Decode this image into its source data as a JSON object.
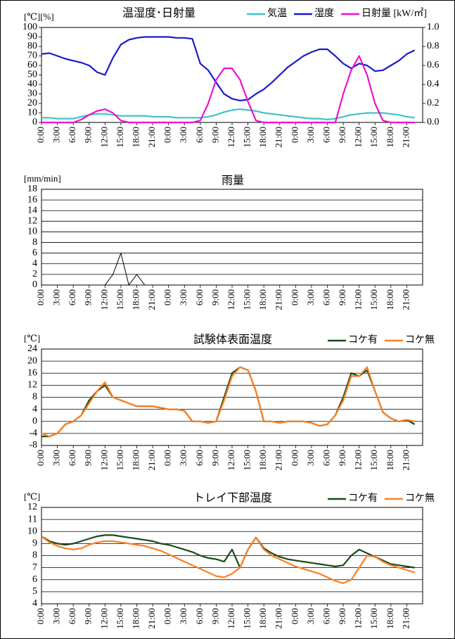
{
  "chart_data": [
    {
      "type": "line",
      "title": "温湿度･日射量",
      "y_label": "[℃][%]",
      "grid": false,
      "legend": "top-right",
      "categories": [
        "0:00",
        null,
        "3:00",
        null,
        "6:00",
        null,
        "9:00",
        null,
        "12:00",
        null,
        "15:00",
        null,
        "18:00",
        null,
        "21:00",
        null,
        "0:00",
        null,
        "3:00",
        null,
        "6:00",
        null,
        "9:00",
        null,
        "12:00",
        null,
        "15:00",
        null,
        "18:00",
        null,
        "21:00",
        null,
        "0:00",
        null,
        "3:00",
        null,
        "6:00",
        null,
        "9:00",
        null,
        "12:00",
        null,
        "15:00",
        null,
        "18:00",
        null,
        "21:00",
        null
      ],
      "ylim": [
        0,
        100
      ],
      "yticks": [
        0,
        10,
        20,
        30,
        40,
        50,
        60,
        70,
        80,
        90,
        100
      ],
      "y2lim": [
        0,
        1
      ],
      "y2ticks": [
        {
          "value": 0,
          "label": "0.0"
        },
        {
          "value": 0.2,
          "label": "0.2"
        },
        {
          "value": 0.4,
          "label": "0.4"
        },
        {
          "value": 0.6,
          "label": "0.6"
        },
        {
          "value": 0.8,
          "label": "0.8"
        },
        {
          "value": 1,
          "label": "1.0"
        }
      ],
      "series": [
        {
          "name": "気温",
          "color": "#40c4c4",
          "values": [
            5,
            5,
            4,
            4,
            4,
            6,
            8,
            9,
            9,
            8,
            7,
            7,
            7,
            7,
            6,
            6,
            6,
            5,
            5,
            5,
            5,
            6,
            8,
            11,
            13,
            14,
            13,
            12,
            10,
            9,
            8,
            7,
            6,
            5,
            4,
            4,
            3,
            4,
            6,
            8,
            9,
            10,
            10,
            10,
            9,
            8,
            6,
            5
          ]
        },
        {
          "name": "湿度",
          "color": "#1a1acc",
          "values": [
            72,
            73,
            70,
            67,
            65,
            63,
            60,
            53,
            50,
            68,
            82,
            87,
            89,
            90,
            90,
            90,
            90,
            89,
            89,
            88,
            62,
            55,
            42,
            30,
            25,
            23,
            24,
            30,
            35,
            42,
            50,
            58,
            64,
            70,
            74,
            77,
            77,
            70,
            62,
            57,
            62,
            60,
            54,
            55,
            60,
            65,
            72,
            76
          ]
        },
        {
          "name": "日射量 [kW/㎡]",
          "color": "#ee10d0",
          "axis": "y2",
          "values": [
            0,
            0,
            0,
            0,
            0,
            0.03,
            0.08,
            0.12,
            0.14,
            0.1,
            0.02,
            0,
            0,
            0,
            0,
            0,
            0,
            0,
            0,
            0,
            0.02,
            0.2,
            0.45,
            0.57,
            0.57,
            0.45,
            0.22,
            0.02,
            0,
            0,
            0,
            0,
            0,
            0,
            0,
            0,
            0,
            0,
            0.3,
            0.55,
            0.7,
            0.5,
            0.2,
            0.02,
            0,
            0,
            0,
            0
          ]
        }
      ]
    },
    {
      "type": "line",
      "title": "雨量",
      "y_label": "[mm/min]",
      "grid": true,
      "color": "#000000",
      "categories": [
        "0:00",
        null,
        "3:00",
        null,
        "6:00",
        null,
        "9:00",
        null,
        "12:00",
        null,
        "15:00",
        null,
        "18:00",
        null,
        "21:00",
        null,
        "0:00",
        null,
        "3:00",
        null,
        "6:00",
        null,
        "9:00",
        null,
        "12:00",
        null,
        "15:00",
        null,
        "18:00",
        null,
        "21:00",
        null,
        "0:00",
        null,
        "3:00",
        null,
        "6:00",
        null,
        "9:00",
        null,
        "12:00",
        null,
        "15:00",
        null,
        "18:00",
        null,
        "21:00",
        null
      ],
      "ylim": [
        0,
        18
      ],
      "yticks": [
        0,
        2,
        4,
        6,
        8,
        10,
        12,
        14,
        16,
        18
      ],
      "values": [
        0,
        0,
        0,
        0,
        0,
        0,
        0,
        0,
        0,
        2,
        6,
        0,
        2,
        0,
        0,
        0,
        0,
        0,
        0,
        0,
        0,
        0,
        0,
        0,
        0,
        0,
        0,
        0,
        0,
        0,
        0,
        0,
        0,
        0,
        0,
        0,
        0,
        0,
        0,
        0,
        0,
        0,
        0,
        0,
        0,
        0,
        0,
        0
      ]
    },
    {
      "type": "line",
      "title": "試験体表面温度",
      "y_label": "[℃]",
      "grid": true,
      "legend": "top-right",
      "categories": [
        "0:00",
        null,
        "3:00",
        null,
        "6:00",
        null,
        "9:00",
        null,
        "12:00",
        null,
        "15:00",
        null,
        "18:00",
        null,
        "21:00",
        null,
        "0:00",
        null,
        "3:00",
        null,
        "6:00",
        null,
        "9:00",
        null,
        "12:00",
        null,
        "15:00",
        null,
        "18:00",
        null,
        "21:00",
        null,
        "0:00",
        null,
        "3:00",
        null,
        "6:00",
        null,
        "9:00",
        null,
        "12:00",
        null,
        "15:00",
        null,
        "18:00",
        null,
        "21:00",
        null
      ],
      "ylim": [
        -8,
        24
      ],
      "yticks": [
        -8,
        -4,
        0,
        4,
        8,
        12,
        16,
        20,
        24
      ],
      "series": [
        {
          "name": "コケ有",
          "color": "#1a4a1a",
          "values": [
            -5,
            -5,
            -4,
            -1,
            0,
            2,
            7,
            10,
            12,
            8,
            7,
            6,
            5,
            5,
            5,
            4.5,
            4,
            4,
            3.5,
            0,
            0,
            -0.5,
            0,
            8,
            16,
            18,
            17,
            10,
            0,
            0,
            -0.5,
            0,
            0,
            0,
            -0.5,
            -1.5,
            -1,
            2,
            8,
            16,
            15,
            17,
            10,
            3,
            1,
            0,
            0.5,
            -1
          ]
        },
        {
          "name": "コケ無",
          "color": "#ff7f20",
          "values": [
            -4,
            -5,
            -4,
            -1,
            0,
            2,
            6,
            10,
            13,
            8,
            7,
            6,
            5,
            5,
            5,
            4.5,
            4,
            4,
            3.5,
            0,
            0,
            -0.5,
            0,
            7,
            15,
            18,
            17,
            10,
            0,
            0,
            -0.5,
            0,
            0,
            0,
            -0.5,
            -1.5,
            -1,
            2,
            7,
            15,
            15,
            18,
            10,
            3,
            1,
            0,
            0.5,
            0
          ]
        }
      ]
    },
    {
      "type": "line",
      "title": "トレイ下部温度",
      "y_label": "[℃]",
      "grid": true,
      "legend": "top-right",
      "categories": [
        "0:00",
        null,
        "3:00",
        null,
        "6:00",
        null,
        "9:00",
        null,
        "12:00",
        null,
        "15:00",
        null,
        "18:00",
        null,
        "21:00",
        null,
        "0:00",
        null,
        "3:00",
        null,
        "6:00",
        null,
        "9:00",
        null,
        "12:00",
        null,
        "15:00",
        null,
        "18:00",
        null,
        "21:00",
        null,
        "0:00",
        null,
        "3:00",
        null,
        "6:00",
        null,
        "9:00",
        null,
        "12:00",
        null,
        "15:00",
        null,
        "18:00",
        null,
        "21:00",
        null
      ],
      "ylim": [
        4,
        12
      ],
      "yticks": [
        4,
        5,
        6,
        7,
        8,
        9,
        10,
        11,
        12
      ],
      "series": [
        {
          "name": "コケ有",
          "color": "#1a4a1a",
          "values": [
            9.6,
            9.2,
            9.0,
            8.9,
            9.0,
            9.2,
            9.4,
            9.6,
            9.7,
            9.7,
            9.6,
            9.5,
            9.4,
            9.3,
            9.2,
            9.0,
            8.9,
            8.7,
            8.5,
            8.3,
            8.0,
            7.8,
            7.7,
            7.5,
            8.5,
            7.0,
            8.5,
            9.5,
            8.6,
            8.2,
            7.9,
            7.7,
            7.6,
            7.5,
            7.4,
            7.3,
            7.2,
            7.1,
            7.2,
            8.0,
            8.5,
            8.2,
            7.9,
            7.6,
            7.3,
            7.2,
            7.1,
            7.0
          ]
        },
        {
          "name": "コケ無",
          "color": "#ff7f20",
          "values": [
            9.6,
            9.1,
            8.8,
            8.6,
            8.5,
            8.6,
            8.9,
            9.1,
            9.2,
            9.2,
            9.1,
            9.0,
            8.9,
            8.8,
            8.6,
            8.4,
            8.1,
            7.8,
            7.5,
            7.2,
            6.9,
            6.6,
            6.3,
            6.2,
            6.5,
            7.0,
            8.5,
            9.5,
            8.5,
            8.0,
            7.7,
            7.4,
            7.1,
            6.9,
            6.7,
            6.5,
            6.2,
            5.9,
            5.7,
            6.0,
            7.0,
            8.0,
            7.9,
            7.5,
            7.2,
            7.0,
            6.8,
            6.6
          ]
        }
      ]
    }
  ]
}
